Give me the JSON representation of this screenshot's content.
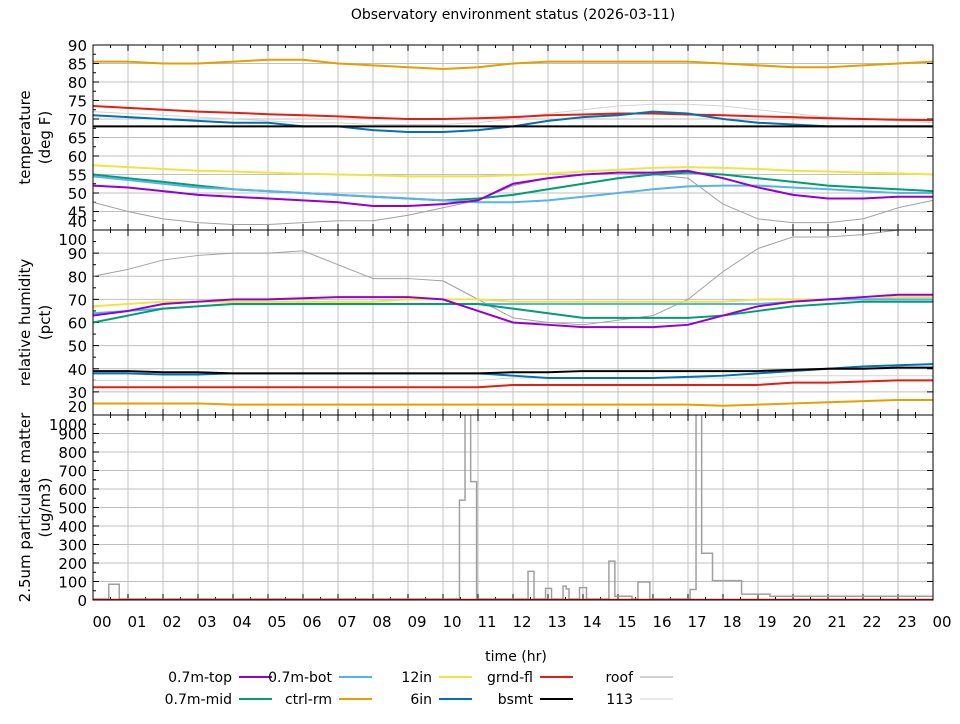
{
  "chart_data": {
    "type": "line",
    "title": "Observatory environment status (2026-03-11)",
    "xlabel": "time (hr)",
    "x_ticks": [
      "00",
      "01",
      "02",
      "03",
      "04",
      "05",
      "06",
      "07",
      "08",
      "09",
      "10",
      "11",
      "12",
      "13",
      "14",
      "15",
      "16",
      "17",
      "18",
      "19",
      "20",
      "21",
      "22",
      "23",
      "00"
    ],
    "xlim": [
      0,
      24
    ],
    "grid": true,
    "legend_placement": "bottom",
    "series_meta": [
      {
        "key": "top",
        "name": "0.7m-top",
        "color": "#9400d3",
        "width": 2
      },
      {
        "key": "mid",
        "name": "0.7m-mid",
        "color": "#009e73",
        "width": 2
      },
      {
        "key": "bot",
        "name": "0.7m-bot",
        "color": "#56b4e9",
        "width": 2
      },
      {
        "key": "ctrl",
        "name": "ctrl-rm",
        "color": "#e69f00",
        "width": 2
      },
      {
        "key": "in12",
        "name": "12in",
        "color": "#f0e442",
        "width": 2
      },
      {
        "key": "in6",
        "name": "6in",
        "color": "#0072b2",
        "width": 2
      },
      {
        "key": "grnd",
        "name": "grnd-fl",
        "color": "#e51e10",
        "width": 2
      },
      {
        "key": "bsmt",
        "name": "bsmt",
        "color": "#000000",
        "width": 2
      },
      {
        "key": "roof",
        "name": "roof",
        "color": "#a0a0a0",
        "width": 1
      },
      {
        "key": "s113",
        "name": "113",
        "color": "#d4d4d4",
        "width": 1
      }
    ],
    "panels": [
      {
        "ylabel": [
          "temperature",
          "(deg F)"
        ],
        "ylim": [
          40,
          90
        ],
        "yticks": [
          40,
          45,
          50,
          55,
          60,
          65,
          70,
          75,
          80,
          85,
          90
        ],
        "series": {
          "s113": [
            72,
            71.5,
            71,
            70.5,
            70,
            69.5,
            69,
            69,
            68.5,
            68.5,
            68.5,
            69,
            70,
            71.5,
            72.5,
            73.5,
            74,
            74,
            73.5,
            72.5,
            71.5,
            70.5,
            70,
            69.5,
            69
          ],
          "roof": [
            47.5,
            45,
            43,
            42,
            41.5,
            41.5,
            42,
            42.5,
            42.5,
            44,
            46,
            48,
            52,
            54,
            55,
            55.5,
            55,
            54,
            47,
            43,
            42,
            42,
            43,
            46,
            48
          ],
          "ctrl": [
            85.5,
            85.5,
            85,
            85,
            85.5,
            86,
            86,
            85,
            84.5,
            84,
            83.5,
            84,
            85,
            85.5,
            85.5,
            85.5,
            85.5,
            85.5,
            85,
            84.5,
            84,
            84,
            84.5,
            85,
            85.5
          ],
          "grnd": [
            73.5,
            73,
            72.5,
            72,
            71.7,
            71.3,
            71,
            70.7,
            70.3,
            70,
            70,
            70.2,
            70.5,
            71,
            71.2,
            71.5,
            71.5,
            71.2,
            71,
            70.7,
            70.5,
            70.2,
            70,
            69.8,
            69.7
          ],
          "in6": [
            71,
            70.5,
            70,
            69.5,
            69,
            69,
            68,
            68,
            67,
            66.5,
            66.5,
            67,
            68,
            69.5,
            70.5,
            71,
            72,
            71.5,
            70,
            69,
            68.5,
            68,
            68,
            68,
            68
          ],
          "bsmt": [
            68,
            68,
            68,
            68,
            68,
            68,
            68,
            68,
            68,
            68,
            68,
            68,
            68,
            68,
            68,
            68,
            68,
            68,
            68,
            68,
            68,
            68,
            68,
            68,
            68
          ],
          "in12": [
            57.5,
            57,
            56.5,
            56,
            55.8,
            55.5,
            55.2,
            55,
            54.8,
            54.5,
            54.5,
            54.5,
            54.8,
            55.2,
            55.8,
            56.3,
            56.8,
            57,
            56.8,
            56.5,
            56,
            55.8,
            55.5,
            55.3,
            55
          ],
          "mid": [
            55,
            54,
            53,
            52,
            51,
            50.5,
            50,
            49.5,
            49,
            48.5,
            48,
            48.5,
            49.5,
            51,
            52.5,
            54,
            55,
            55.5,
            55,
            54,
            53,
            52,
            51.5,
            51,
            50.5
          ],
          "bot": [
            54.5,
            53.5,
            52.5,
            51.5,
            51,
            50.5,
            50,
            49.5,
            49,
            48.5,
            48,
            47.5,
            47.5,
            48,
            49,
            50,
            51,
            51.8,
            52,
            52,
            51.5,
            51,
            50.5,
            50,
            50
          ],
          "top": [
            52,
            51.5,
            50.5,
            49.5,
            49,
            48.5,
            48,
            47.5,
            46.5,
            46.5,
            47,
            48,
            52.5,
            54,
            55,
            55.5,
            55.5,
            56,
            54,
            51.5,
            49.5,
            48.5,
            48.5,
            49,
            49
          ]
        }
      },
      {
        "ylabel": [
          "relative humidity",
          "(pct)"
        ],
        "ylim": [
          20,
          100
        ],
        "yticks": [
          20,
          30,
          40,
          50,
          60,
          70,
          80,
          90,
          100
        ],
        "series": {
          "roof": [
            80,
            83,
            87,
            89,
            90,
            90,
            91,
            85,
            79,
            79,
            78,
            70,
            62,
            60,
            59,
            61,
            63,
            70,
            82,
            92,
            97,
            97,
            98,
            100,
            100
          ],
          "s113": [
            35,
            35,
            35,
            35,
            35,
            35,
            35,
            35,
            35,
            35,
            35,
            35,
            36,
            36,
            36,
            36,
            36,
            36,
            36,
            36,
            37,
            37,
            37,
            37,
            37
          ],
          "in12": [
            67,
            68,
            69,
            69,
            69,
            69,
            69,
            69,
            69,
            70,
            70,
            70,
            69,
            69,
            69,
            69,
            69,
            69,
            69,
            70,
            70,
            70,
            70,
            71,
            71
          ],
          "bot": [
            64,
            65,
            66,
            67,
            68,
            68,
            68,
            68,
            68,
            68,
            68,
            68,
            68,
            68,
            68,
            68,
            68,
            68,
            68,
            68,
            69,
            70,
            70,
            70,
            70
          ],
          "mid": [
            60,
            63,
            66,
            67,
            68,
            68,
            68,
            68,
            68,
            68,
            68,
            68,
            66,
            64,
            62,
            62,
            62,
            62,
            63,
            65,
            67,
            68,
            69,
            69,
            69
          ],
          "top": [
            63,
            65,
            68,
            69,
            70,
            70,
            70.5,
            71,
            71,
            71,
            70,
            65,
            60,
            59,
            58,
            58,
            58,
            59,
            63,
            67,
            69,
            70,
            71,
            72,
            72
          ],
          "in6": [
            38,
            38,
            37.5,
            37.5,
            38,
            38,
            38,
            38,
            38,
            38,
            38,
            38,
            37,
            36,
            36,
            36,
            36,
            36.5,
            37,
            38,
            39,
            40,
            41,
            41.5,
            42
          ],
          "bsmt": [
            39,
            39,
            38.5,
            38.5,
            38,
            38,
            38,
            38,
            38,
            38,
            38,
            38,
            38.5,
            38.5,
            39,
            39,
            39,
            39,
            39,
            39,
            39.5,
            40,
            40,
            40.5,
            40.5
          ],
          "grnd": [
            32,
            32,
            32,
            32,
            32,
            32,
            32,
            32,
            32,
            32,
            32,
            32,
            33,
            33,
            33,
            33,
            33,
            33,
            33,
            33,
            34,
            34,
            34.5,
            35,
            35
          ],
          "ctrl": [
            25,
            25,
            25,
            25,
            24.5,
            24.5,
            24.5,
            24.5,
            24.5,
            24.5,
            24.5,
            24.5,
            24.5,
            24.5,
            24.5,
            24.5,
            24.5,
            24.5,
            24,
            24.5,
            25,
            25.5,
            26,
            26.5,
            26.5
          ]
        }
      },
      {
        "ylabel": [
          "2.5um particulate matter",
          "(ug/m3)"
        ],
        "ylim": [
          0,
          1000
        ],
        "yticks": [
          0,
          100,
          200,
          300,
          400,
          500,
          600,
          700,
          800,
          900,
          1000
        ],
        "step_series": {
          "roof": [
            [
              0,
              5
            ],
            [
              0.45,
              85
            ],
            [
              0.75,
              5
            ],
            [
              10.47,
              540
            ],
            [
              10.63,
              1200
            ],
            [
              10.79,
              640
            ],
            [
              10.96,
              5
            ],
            [
              12.43,
              155
            ],
            [
              12.6,
              5
            ],
            [
              12.93,
              63
            ],
            [
              13.1,
              5
            ],
            [
              13.43,
              75
            ],
            [
              13.52,
              60
            ],
            [
              13.6,
              5
            ],
            [
              13.9,
              67
            ],
            [
              14.1,
              5
            ],
            [
              14.74,
              210
            ],
            [
              14.91,
              20
            ],
            [
              15.4,
              5
            ],
            [
              15.57,
              97
            ],
            [
              15.91,
              5
            ],
            [
              17.06,
              57
            ],
            [
              17.23,
              1200
            ],
            [
              17.39,
              253
            ],
            [
              17.7,
              105
            ],
            [
              18.53,
              32
            ],
            [
              19.34,
              20
            ],
            [
              24,
              20
            ]
          ],
          "grnd": [
            [
              0,
              3
            ],
            [
              24,
              3
            ]
          ]
        }
      }
    ]
  }
}
